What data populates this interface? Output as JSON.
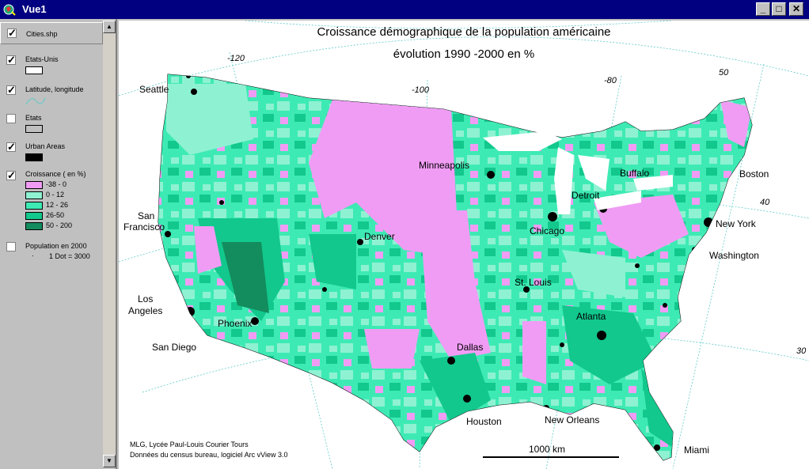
{
  "window": {
    "title": "Vue1",
    "minimize": "_",
    "maximize": "□",
    "close": "✕"
  },
  "legend": {
    "cities": "Cities.shp",
    "etats_unis": "Etats-Unis",
    "latlong": "Latitude, longitude",
    "etats": "Etats",
    "urban": "Urban Areas",
    "croissance": "Croissance ( en %)",
    "classes": [
      {
        "label": "-38 - 0",
        "color": "#f09cf4"
      },
      {
        "label": "0 - 12",
        "color": "#8ef2d2"
      },
      {
        "label": "12 - 26",
        "color": "#3eeab4"
      },
      {
        "label": "26-50",
        "color": "#12c88c"
      },
      {
        "label": "50 - 200",
        "color": "#138c5e"
      }
    ],
    "population": "Population en 2000",
    "dot": "1 Dot = 3000"
  },
  "map": {
    "title1": "Croissance démographique de la population américaine",
    "title2": "évolution   1990 -2000 en %",
    "cities": {
      "seattle": "Seattle",
      "sanfrancisco1": "San",
      "sanfrancisco2": "Francisco",
      "losangeles1": "Los",
      "losangeles2": "Angeles",
      "sandiego": "San Diego",
      "phoenix": "Phoenix",
      "denver": "Denver",
      "minneapolis": "Minneapolis",
      "chicago": "Chicago",
      "detroit": "Detroit",
      "buffalo": "Buffalo",
      "boston": "Boston",
      "newyork": "New York",
      "washington": "Washington",
      "stlouis": "St. Louis",
      "atlanta": "Atlanta",
      "dallas": "Dallas",
      "houston": "Houston",
      "neworleans": "New Orleans",
      "miami": "Miami"
    },
    "graticule": {
      "w120": "-120",
      "w100": "-100",
      "w80": "-80",
      "n50": "50",
      "n40": "40",
      "n30": "30"
    },
    "scale": "1000 km",
    "credit1": "MLG, Lycée Paul-Louis Courier Tours",
    "credit2": "Données du census bureau, logiciel Arc vView 3.0"
  },
  "colors": {
    "titlebar": "#000080",
    "panel": "#c0c0c0",
    "decline": "#f09cf4",
    "low": "#8ef2d2",
    "mid": "#3eeab4",
    "high": "#12c88c",
    "top": "#138c5e",
    "graticule": "#5ec9c9",
    "lakes": "#ffffff"
  }
}
